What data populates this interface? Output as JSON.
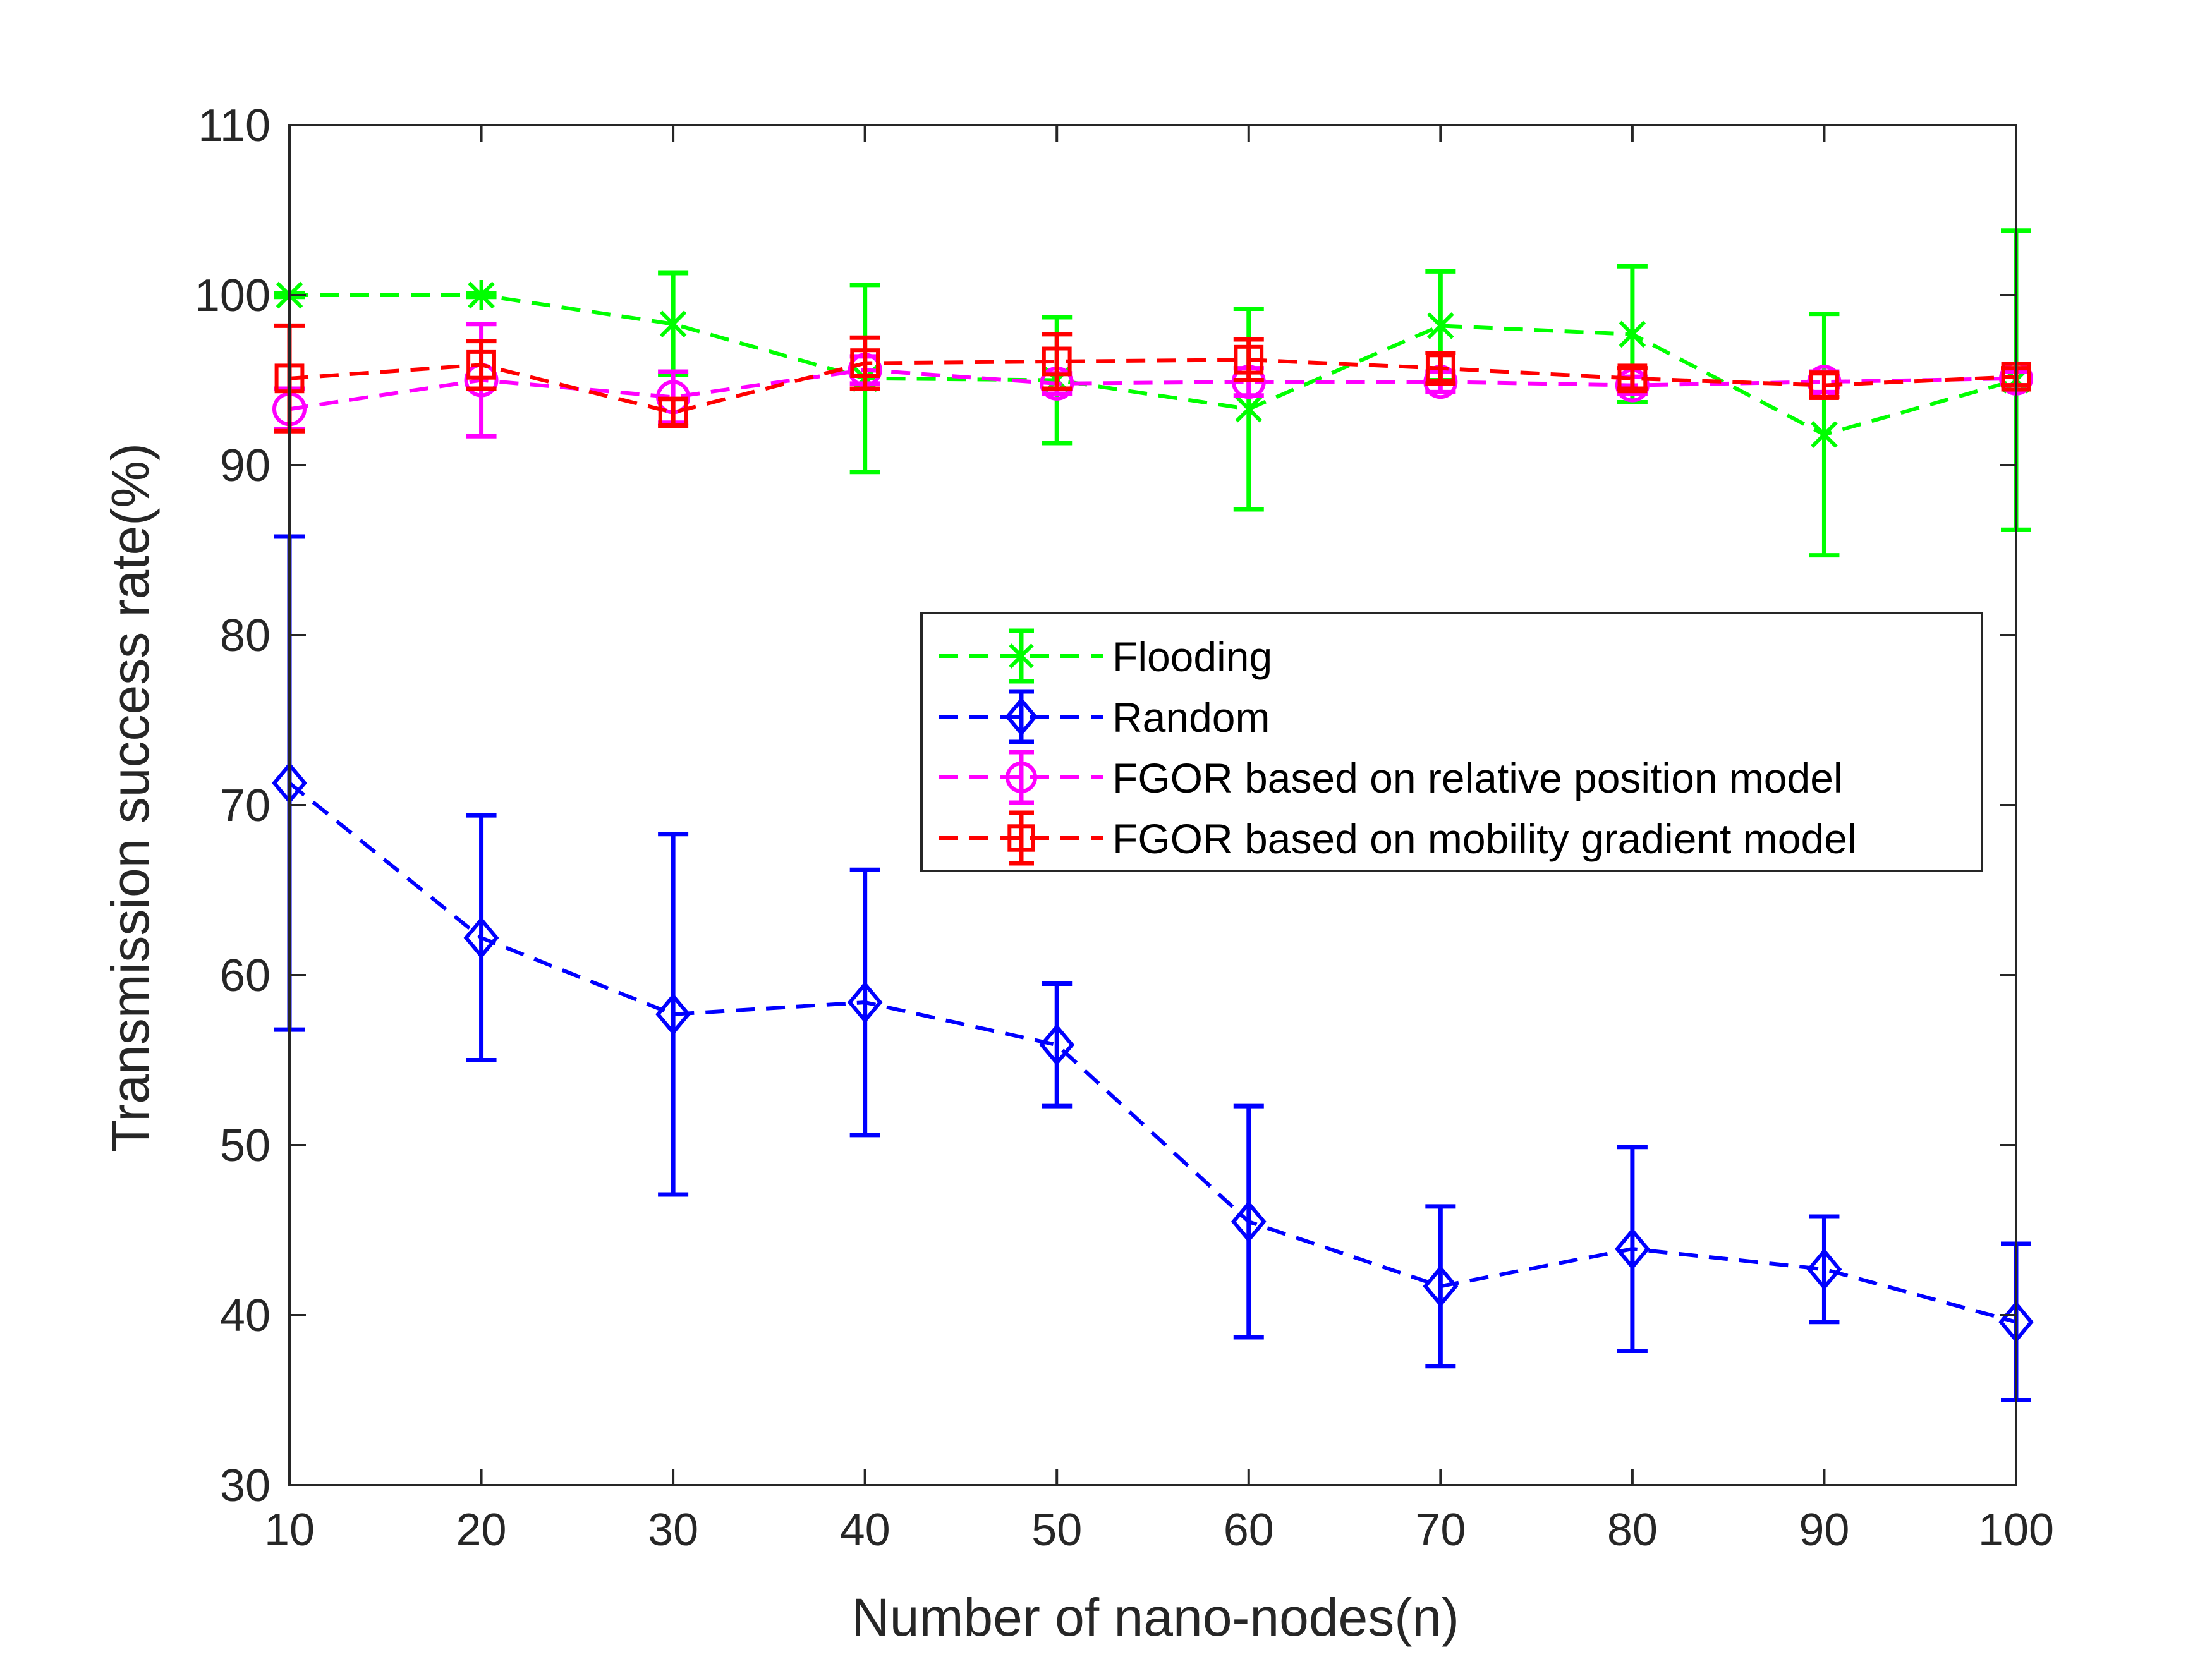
{
  "chart_data": {
    "type": "line",
    "title": "",
    "xlabel": "Number of nano-nodes(n)",
    "ylabel": "Transmission success rate(%)",
    "xlim": [
      10,
      100
    ],
    "ylim": [
      30,
      110
    ],
    "xticks": [
      10,
      20,
      30,
      40,
      50,
      60,
      70,
      80,
      90,
      100
    ],
    "yticks": [
      30,
      40,
      50,
      60,
      70,
      80,
      90,
      100,
      110
    ],
    "grid": false,
    "legend_position": "center-right",
    "x": [
      10,
      20,
      30,
      40,
      50,
      60,
      70,
      80,
      90,
      100
    ],
    "series": [
      {
        "name": "Flooding",
        "color": "#00ff00",
        "marker": "x-star",
        "values": [
          100,
          100,
          98.3,
          95.1,
          95.0,
          93.3,
          98.2,
          97.7,
          91.8,
          95.0
        ],
        "error": [
          0.1,
          0.1,
          3.0,
          5.5,
          3.7,
          5.9,
          3.2,
          4.0,
          7.1,
          8.8
        ]
      },
      {
        "name": "Random",
        "color": "#0000ff",
        "marker": "diamond",
        "values": [
          71.3,
          62.2,
          57.7,
          58.4,
          55.9,
          45.5,
          41.7,
          43.9,
          42.7,
          39.6
        ],
        "error": [
          14.5,
          7.2,
          10.6,
          7.8,
          3.6,
          6.8,
          4.7,
          6.0,
          3.1,
          4.6
        ]
      },
      {
        "name": "FGOR based on relative position model",
        "color": "#ff00ff",
        "marker": "circle",
        "values": [
          93.3,
          95.0,
          94.0,
          95.6,
          94.8,
          94.9,
          94.9,
          94.7,
          94.9,
          95.1
        ],
        "error": [
          1.2,
          3.3,
          1.5,
          0.8,
          0.6,
          0.8,
          0.6,
          0.5,
          0.6,
          0.4
        ]
      },
      {
        "name": "FGOR based on mobility gradient model",
        "color": "#ff0000",
        "marker": "square",
        "values": [
          95.1,
          95.9,
          93.1,
          96.0,
          96.1,
          96.2,
          95.7,
          95.1,
          94.7,
          95.2
        ],
        "error": [
          3.1,
          1.4,
          0.8,
          1.5,
          1.6,
          1.2,
          0.9,
          0.6,
          0.7,
          0.5
        ]
      }
    ]
  }
}
